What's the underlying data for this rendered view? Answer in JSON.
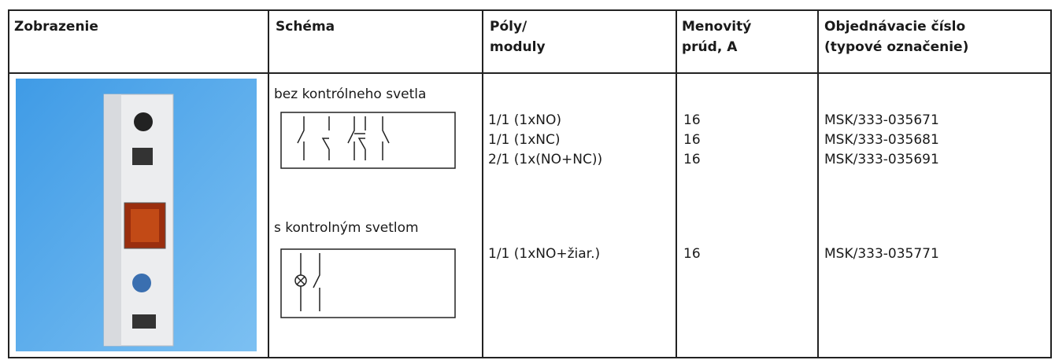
{
  "table": {
    "headers": [
      [
        "Zobrazenie"
      ],
      [
        "Schéma"
      ],
      [
        "Póly/",
        "moduly"
      ],
      [
        "Menovitý",
        "prúd, A"
      ],
      [
        "Objednávacie číslo",
        "(typové označenie)"
      ]
    ],
    "schema_labels": [
      "bez kontrólneho svetla",
      "s kontrolným svetlom"
    ],
    "rows": [
      [
        "1/1 (1xNO)",
        16,
        "MSK/333-035671"
      ],
      [
        "1/1 (1xNC)",
        16,
        "MSK/333-035681"
      ],
      [
        "2/1 (1x(NO+NC))",
        16,
        "MSK/333-035691"
      ],
      [
        "1/1 (1xNO+žiar.)",
        16,
        "MSK/333-035771"
      ]
    ]
  }
}
